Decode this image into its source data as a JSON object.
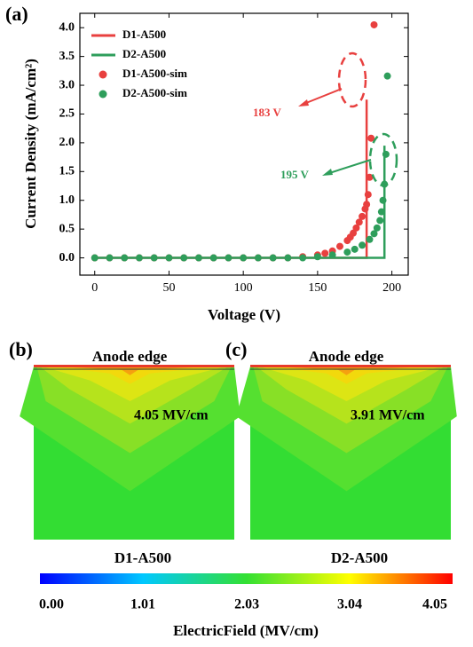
{
  "chart_data": [
    {
      "type": "line",
      "panel": "(a)",
      "x_label": "Voltage (V)",
      "y_label": "Current Density (mA/cm²)",
      "xlim": [
        -10,
        211
      ],
      "xticks": [
        0,
        50,
        100,
        150,
        200
      ],
      "ylim": [
        -0.3,
        4.25
      ],
      "yticks": [
        {
          "value": 0,
          "label": "0.0"
        },
        0.5,
        {
          "value": 1,
          "label": "1.0"
        },
        1.5,
        {
          "value": 2,
          "label": "2.0"
        },
        2.5,
        {
          "value": 3,
          "label": "3.0"
        },
        3.5,
        {
          "value": 4,
          "label": "4.0"
        }
      ],
      "annotations": [
        {
          "text": "183 V",
          "color": "#e8403f"
        },
        {
          "text": "195 V",
          "color": "#2e9e5b"
        }
      ],
      "series": [
        {
          "name": "D1-A500",
          "kind": "line",
          "color": "#e8403f",
          "x": [
            0,
            183,
            183
          ],
          "values": [
            0,
            0,
            2.75
          ]
        },
        {
          "name": "D2-A500",
          "kind": "line",
          "color": "#2e9e5b",
          "x": [
            0,
            195,
            195
          ],
          "values": [
            0,
            0,
            1.95
          ]
        },
        {
          "name": "D1-A500-sim",
          "kind": "scatter",
          "color": "#e8403f",
          "x": [
            0,
            10,
            20,
            30,
            40,
            50,
            60,
            70,
            80,
            90,
            100,
            110,
            120,
            130,
            140,
            150,
            155,
            160,
            165,
            170,
            172,
            174,
            176,
            178,
            180,
            182,
            183,
            184,
            185,
            186,
            188
          ],
          "values": [
            0,
            0,
            0,
            0,
            0,
            0,
            0,
            0,
            0,
            0,
            0,
            0,
            0,
            0,
            0.02,
            0.05,
            0.08,
            0.12,
            0.2,
            0.3,
            0.36,
            0.43,
            0.52,
            0.62,
            0.72,
            0.85,
            0.93,
            1.1,
            1.4,
            2.08,
            4.05
          ]
        },
        {
          "name": "D2-A500-sim",
          "kind": "scatter",
          "color": "#2e9e5b",
          "x": [
            0,
            10,
            20,
            30,
            40,
            50,
            60,
            70,
            80,
            90,
            100,
            110,
            120,
            130,
            140,
            150,
            160,
            170,
            175,
            180,
            185,
            188,
            190,
            192,
            193,
            194,
            195,
            196,
            197
          ],
          "values": [
            0,
            0,
            0,
            0,
            0,
            0,
            0,
            0,
            0,
            0,
            0,
            0,
            0,
            0,
            0,
            0.02,
            0.05,
            0.1,
            0.15,
            0.22,
            0.32,
            0.42,
            0.52,
            0.65,
            0.8,
            1.0,
            1.28,
            1.8,
            3.16
          ]
        }
      ]
    },
    {
      "type": "heatmap",
      "panel": "(b)",
      "title": "Anode edge",
      "annotation": "4.05 MV/cm",
      "label": "D1-A500"
    },
    {
      "type": "heatmap",
      "panel": "(c)",
      "title": "Anode edge",
      "annotation": "3.91 MV/cm",
      "label": "D2-A500"
    }
  ],
  "colorbar": {
    "label": "ElectricField (MV/cm)",
    "lim": [
      0,
      4.05
    ],
    "ticks": [
      {
        "value": 0,
        "label": "0.00"
      },
      1.01,
      2.03,
      3.04,
      4.05
    ]
  }
}
